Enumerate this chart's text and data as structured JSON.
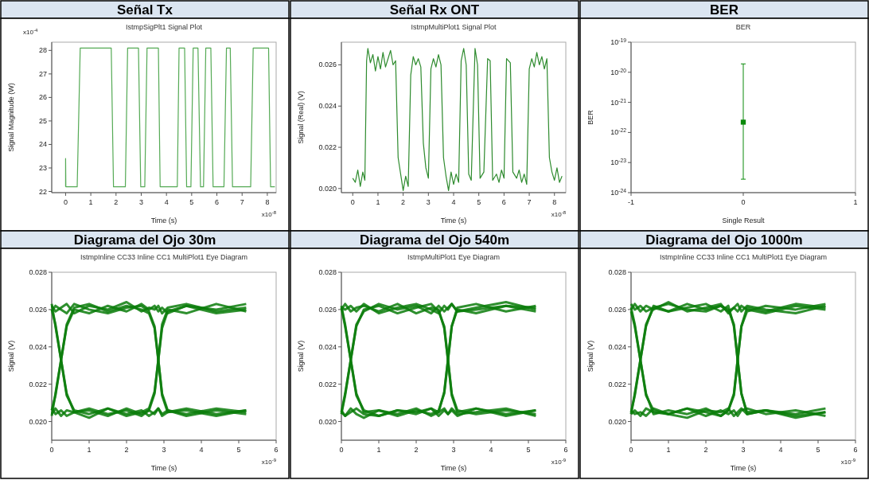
{
  "chart_data": [
    {
      "type": "line",
      "title": "Señal Tx",
      "subtitle": "IstmpSigPlt1 Signal Plot",
      "xlabel": "Time (s)",
      "ylabel": "Signal Magnitude (W)",
      "annotations": [
        "x10$^{-4}$",
        "x10$^{-8}$"
      ],
      "xlim": [
        -0.55,
        8.35
      ],
      "xticks": [
        0,
        1,
        2,
        3,
        4,
        5,
        6,
        7,
        8
      ],
      "ylim": [
        21.95,
        28.35
      ],
      "yticks": [
        22,
        23,
        24,
        25,
        26,
        27,
        28
      ],
      "series": [
        {
          "color": "#55aa55",
          "x": [
            0,
            0,
            0.01,
            0.46,
            0.58,
            1.81,
            1.9,
            2.37,
            2.46,
            2.89,
            2.98,
            3.14,
            3.23,
            3.68,
            3.75,
            4.43,
            4.5,
            4.72,
            4.8,
            4.97,
            5.06,
            5.25,
            5.35,
            5.47,
            5.56,
            5.76,
            5.85,
            6.28,
            6.38,
            6.53,
            6.62,
            7.34,
            7.44,
            8.05,
            8.13,
            8.3
          ],
          "values": [
            22.2,
            23.4,
            22.2,
            22.2,
            28.1,
            28.1,
            22.2,
            22.2,
            28.1,
            28.1,
            22.2,
            22.2,
            28.1,
            28.1,
            22.2,
            22.2,
            28.1,
            28.1,
            22.2,
            22.2,
            28.1,
            28.1,
            22.2,
            22.2,
            28.1,
            28.1,
            22.2,
            22.2,
            28.1,
            28.1,
            22.2,
            22.2,
            28.1,
            28.1,
            22.2,
            22.2
          ]
        }
      ]
    },
    {
      "type": "line",
      "title": "Señal Rx ONT",
      "subtitle": "IstmpMultiPlot1 Signal Plot",
      "xlabel": "Time (s)",
      "ylabel": "Signal (Real) (V)",
      "annotations": [
        "x10$^{-8}$"
      ],
      "xlim": [
        -0.45,
        8.45
      ],
      "xticks": [
        0,
        1,
        2,
        3,
        4,
        5,
        6,
        7,
        8
      ],
      "ylim": [
        0.0198,
        0.0271
      ],
      "yticks": [
        {
          "value": 0.02,
          "label": "0.020"
        },
        0.022,
        0.024,
        0.026
      ],
      "series": [
        {
          "color": "#2e8b2e",
          "x": [
            0,
            0.1,
            0.2,
            0.3,
            0.4,
            0.48,
            0.55,
            0.6,
            0.7,
            0.8,
            0.9,
            1.0,
            1.1,
            1.2,
            1.3,
            1.4,
            1.5,
            1.6,
            1.7,
            1.8,
            1.9,
            2.0,
            2.1,
            2.2,
            2.3,
            2.4,
            2.5,
            2.6,
            2.7,
            2.8,
            2.9,
            3.0,
            3.1,
            3.2,
            3.3,
            3.4,
            3.5,
            3.6,
            3.7,
            3.8,
            3.9,
            4.0,
            4.1,
            4.2,
            4.3,
            4.4,
            4.5,
            4.6,
            4.7,
            4.85,
            4.95,
            5.05,
            5.2,
            5.35,
            5.45,
            5.55,
            5.7,
            5.8,
            5.9,
            6.0,
            6.1,
            6.25,
            6.35,
            6.5,
            6.6,
            6.7,
            6.8,
            6.9,
            7.0,
            7.1,
            7.2,
            7.3,
            7.4,
            7.5,
            7.6,
            7.7,
            7.8,
            7.9,
            8.0,
            8.1,
            8.2,
            8.3
          ],
          "values": [
            0.0205,
            0.0203,
            0.0209,
            0.0201,
            0.0208,
            0.0204,
            0.0262,
            0.0268,
            0.0261,
            0.0265,
            0.0257,
            0.0264,
            0.0258,
            0.0266,
            0.0259,
            0.0263,
            0.0267,
            0.026,
            0.0262,
            0.0215,
            0.0207,
            0.0199,
            0.0206,
            0.0201,
            0.0255,
            0.0264,
            0.026,
            0.0263,
            0.0259,
            0.0222,
            0.021,
            0.0205,
            0.0258,
            0.0263,
            0.0259,
            0.0265,
            0.026,
            0.0215,
            0.0206,
            0.0199,
            0.0208,
            0.0202,
            0.0207,
            0.0203,
            0.0262,
            0.0268,
            0.026,
            0.0207,
            0.0204,
            0.0268,
            0.026,
            0.0205,
            0.0208,
            0.0263,
            0.0262,
            0.0204,
            0.0207,
            0.0203,
            0.0209,
            0.0205,
            0.0263,
            0.0261,
            0.0208,
            0.0205,
            0.0209,
            0.0203,
            0.0207,
            0.0202,
            0.0258,
            0.0263,
            0.0259,
            0.0266,
            0.026,
            0.0264,
            0.0258,
            0.0263,
            0.0215,
            0.0208,
            0.0204,
            0.021,
            0.0203,
            0.0206
          ]
        }
      ]
    },
    {
      "type": "scatter",
      "title": "BER",
      "subtitle": "BER",
      "xlabel": "Single Result",
      "ylabel": "BER",
      "log": true,
      "marker": "square",
      "xlim": [
        -1,
        1
      ],
      "xticks": [
        -1,
        0,
        1
      ],
      "ylim": [
        1e-24,
        1e-19
      ],
      "yticks": [
        {
          "value": 1e-24,
          "label": "10$^{-24}$"
        },
        {
          "value": 1e-23,
          "label": "10$^{-23}$"
        },
        {
          "value": 1e-22,
          "label": "10$^{-22}$"
        },
        {
          "value": 1e-21,
          "label": "10$^{-21}$"
        },
        {
          "value": 1e-20,
          "label": "10$^{-20}$"
        },
        {
          "value": 1e-19,
          "label": "10$^{-19}$"
        }
      ],
      "series": [
        {
          "color": "#0a8a0a",
          "x": [
            0
          ],
          "values": [
            2.2e-22
          ],
          "errors": [
            [
              2.8e-24,
              1.9e-20
            ]
          ]
        }
      ]
    },
    {
      "type": "line",
      "title": "Diagrama del Ojo 30m",
      "subtitle": "IstmpInline CC33 Inline CC1 MultiPlot1 Eye Diagram",
      "xlabel": "Time (s)",
      "ylabel": "Signal (V)",
      "annotations": [
        "x10$^{-9}$"
      ],
      "xlim": [
        0,
        6
      ],
      "xticks": [
        0,
        1,
        2,
        3,
        4,
        5,
        6
      ],
      "ylim": [
        0.019,
        0.028
      ],
      "yticks": [
        {
          "value": 0.02,
          "label": "0.020"
        },
        0.022,
        0.024,
        0.026,
        0.028
      ],
      "series": [
        {
          "color": "#0b7d0b",
          "x": [
            0,
            0.1,
            0.25,
            0.4,
            0.6,
            1.0,
            1.5,
            2.0,
            2.4,
            2.6,
            2.75,
            2.85,
            2.95,
            3.1,
            3.6,
            4.4,
            5.2
          ],
          "values": [
            0.0262,
            0.0259,
            0.0261,
            0.0263,
            0.0258,
            0.0262,
            0.026,
            0.0264,
            0.0259,
            0.0261,
            0.026,
            0.0262,
            0.0258,
            0.0261,
            0.0263,
            0.0259,
            0.0261
          ]
        },
        {
          "color": "#0b7d0b",
          "x": [
            0,
            0.1,
            0.25,
            0.4,
            0.6,
            1.0,
            1.5,
            2.0,
            2.4,
            2.6,
            2.75,
            2.85,
            2.95,
            3.1,
            3.6,
            4.4,
            5.2
          ],
          "values": [
            0.0204,
            0.0207,
            0.0203,
            0.0206,
            0.0205,
            0.0202,
            0.0207,
            0.0204,
            0.0206,
            0.0203,
            0.0205,
            0.0207,
            0.0204,
            0.0206,
            0.0203,
            0.0206,
            0.0204
          ]
        },
        {
          "color": "#0b7d0b",
          "x": [
            0,
            0.1,
            0.25,
            0.4,
            0.6,
            1.0,
            1.5,
            2.0,
            2.4,
            2.6,
            2.75,
            2.85,
            2.95,
            3.1,
            3.6,
            4.4,
            5.2
          ],
          "values": [
            0.026,
            0.0252,
            0.0233,
            0.0214,
            0.0206,
            0.0204,
            0.0207,
            0.0203,
            0.0205,
            0.0207,
            0.0216,
            0.0233,
            0.025,
            0.0259,
            0.0262,
            0.0258,
            0.026
          ]
        },
        {
          "color": "#0b7d0b",
          "x": [
            0,
            0.1,
            0.25,
            0.4,
            0.6,
            1.0,
            1.5,
            2.0,
            2.4,
            2.6,
            2.75,
            2.85,
            2.95,
            3.1,
            3.6,
            4.4,
            5.2
          ],
          "values": [
            0.0206,
            0.0214,
            0.0233,
            0.0252,
            0.0261,
            0.0263,
            0.0259,
            0.0262,
            0.026,
            0.0258,
            0.025,
            0.0233,
            0.0215,
            0.0206,
            0.0204,
            0.0207,
            0.0205
          ]
        },
        {
          "color": "#0b7d0b",
          "x": [
            0,
            0.1,
            0.25,
            0.4,
            0.6,
            1.0,
            1.5,
            2.0,
            2.4,
            2.6,
            2.75,
            2.85,
            2.95,
            3.1,
            3.6,
            4.4,
            5.2
          ],
          "values": [
            0.0263,
            0.0251,
            0.0233,
            0.0215,
            0.0205,
            0.0207,
            0.0204,
            0.0206,
            0.0203,
            0.0206,
            0.0204,
            0.0207,
            0.0203,
            0.0205,
            0.0206,
            0.0203,
            0.0206
          ]
        },
        {
          "color": "#0b7d0b",
          "x": [
            0,
            0.1,
            0.25,
            0.4,
            0.6,
            1.0,
            1.5,
            2.0,
            2.4,
            2.6,
            2.75,
            2.85,
            2.95,
            3.1,
            3.6,
            4.4,
            5.2
          ],
          "values": [
            0.0203,
            0.0215,
            0.0233,
            0.0251,
            0.026,
            0.0258,
            0.0262,
            0.0259,
            0.0263,
            0.026,
            0.0262,
            0.0259,
            0.0261,
            0.0258,
            0.0262,
            0.026,
            0.0263
          ]
        },
        {
          "color": "#0b7d0b",
          "x": [
            0,
            0.1,
            0.25,
            0.4,
            0.6,
            1.0,
            1.5,
            2.0,
            2.4,
            2.6,
            2.75,
            2.85,
            2.95,
            3.1,
            3.6,
            4.4,
            5.2
          ],
          "values": [
            0.0259,
            0.0262,
            0.026,
            0.0258,
            0.0263,
            0.026,
            0.0258,
            0.0261,
            0.0262,
            0.0259,
            0.0251,
            0.0233,
            0.0214,
            0.0205,
            0.0207,
            0.0204,
            0.0206
          ]
        },
        {
          "color": "#0b7d0b",
          "x": [
            0,
            0.1,
            0.25,
            0.4,
            0.6,
            1.0,
            1.5,
            2.0,
            2.4,
            2.6,
            2.75,
            2.85,
            2.95,
            3.1,
            3.6,
            4.4,
            5.2
          ],
          "values": [
            0.0207,
            0.0204,
            0.0206,
            0.0203,
            0.0205,
            0.0206,
            0.0203,
            0.0207,
            0.0204,
            0.0206,
            0.0215,
            0.0233,
            0.0252,
            0.026,
            0.0258,
            0.0263,
            0.0259
          ]
        }
      ]
    },
    {
      "type": "line",
      "title": "Diagrama del Ojo 540m",
      "subtitle": "IstmpMultiPlot1 Eye Diagram",
      "xlabel": "Time (s)",
      "ylabel": "Signal (V)",
      "annotations": [
        "x10$^{-9}$"
      ],
      "xlim": [
        0,
        6
      ],
      "xticks": [
        0,
        1,
        2,
        3,
        4,
        5,
        6
      ],
      "ylim": [
        0.019,
        0.028
      ],
      "yticks": [
        {
          "value": 0.02,
          "label": "0.020"
        },
        0.022,
        0.024,
        0.026,
        0.028
      ],
      "series": [
        {
          "color": "#0b7d0b",
          "x": [
            0,
            0.1,
            0.25,
            0.4,
            0.6,
            1.0,
            1.5,
            2.0,
            2.4,
            2.6,
            2.75,
            2.85,
            2.95,
            3.1,
            3.6,
            4.4,
            5.2
          ],
          "values": [
            0.0261,
            0.026,
            0.0262,
            0.0259,
            0.0263,
            0.0258,
            0.0261,
            0.0263,
            0.026,
            0.0258,
            0.0262,
            0.026,
            0.0263,
            0.0259,
            0.0261,
            0.0264,
            0.026
          ]
        },
        {
          "color": "#0b7d0b",
          "x": [
            0,
            0.1,
            0.25,
            0.4,
            0.6,
            1.0,
            1.5,
            2.0,
            2.4,
            2.6,
            2.75,
            2.85,
            2.95,
            3.1,
            3.6,
            4.4,
            5.2
          ],
          "values": [
            0.0205,
            0.0203,
            0.0207,
            0.0204,
            0.0202,
            0.0206,
            0.0204,
            0.0207,
            0.0203,
            0.0205,
            0.0207,
            0.0204,
            0.0206,
            0.0203,
            0.0207,
            0.0204,
            0.0206
          ]
        },
        {
          "color": "#0b7d0b",
          "x": [
            0,
            0.1,
            0.25,
            0.4,
            0.6,
            1.0,
            1.5,
            2.0,
            2.4,
            2.6,
            2.75,
            2.85,
            2.95,
            3.1,
            3.6,
            4.4,
            5.2
          ],
          "values": [
            0.0261,
            0.0251,
            0.0233,
            0.0215,
            0.0205,
            0.0206,
            0.0203,
            0.0206,
            0.0204,
            0.0206,
            0.0215,
            0.0233,
            0.0251,
            0.026,
            0.0258,
            0.0262,
            0.0259
          ]
        },
        {
          "color": "#0b7d0b",
          "x": [
            0,
            0.1,
            0.25,
            0.4,
            0.6,
            1.0,
            1.5,
            2.0,
            2.4,
            2.6,
            2.75,
            2.85,
            2.95,
            3.1,
            3.6,
            4.4,
            5.2
          ],
          "values": [
            0.0205,
            0.0215,
            0.0233,
            0.0251,
            0.026,
            0.0262,
            0.0258,
            0.0261,
            0.0263,
            0.0259,
            0.0251,
            0.0233,
            0.0214,
            0.0205,
            0.0207,
            0.0203,
            0.0206
          ]
        },
        {
          "color": "#0b7d0b",
          "x": [
            0,
            0.1,
            0.25,
            0.4,
            0.6,
            1.0,
            1.5,
            2.0,
            2.4,
            2.6,
            2.75,
            2.85,
            2.95,
            3.1,
            3.6,
            4.4,
            5.2
          ],
          "values": [
            0.0262,
            0.0252,
            0.0233,
            0.0214,
            0.0206,
            0.0203,
            0.0206,
            0.0205,
            0.0207,
            0.0203,
            0.0206,
            0.0204,
            0.0207,
            0.0204,
            0.0205,
            0.0207,
            0.0203
          ]
        },
        {
          "color": "#0b7d0b",
          "x": [
            0,
            0.1,
            0.25,
            0.4,
            0.6,
            1.0,
            1.5,
            2.0,
            2.4,
            2.6,
            2.75,
            2.85,
            2.95,
            3.1,
            3.6,
            4.4,
            5.2
          ],
          "values": [
            0.0204,
            0.0214,
            0.0233,
            0.0252,
            0.0259,
            0.0263,
            0.026,
            0.0262,
            0.0258,
            0.0262,
            0.0259,
            0.0261,
            0.0263,
            0.0259,
            0.026,
            0.0262,
            0.0261
          ]
        },
        {
          "color": "#0b7d0b",
          "x": [
            0,
            0.1,
            0.25,
            0.4,
            0.6,
            1.0,
            1.5,
            2.0,
            2.4,
            2.6,
            2.75,
            2.85,
            2.95,
            3.1,
            3.6,
            4.4,
            5.2
          ],
          "values": [
            0.026,
            0.0263,
            0.0259,
            0.0261,
            0.0262,
            0.0259,
            0.0263,
            0.0258,
            0.0261,
            0.026,
            0.025,
            0.0233,
            0.0215,
            0.0206,
            0.0204,
            0.0206,
            0.0204
          ]
        },
        {
          "color": "#0b7d0b",
          "x": [
            0,
            0.1,
            0.25,
            0.4,
            0.6,
            1.0,
            1.5,
            2.0,
            2.4,
            2.6,
            2.75,
            2.85,
            2.95,
            3.1,
            3.6,
            4.4,
            5.2
          ],
          "values": [
            0.0206,
            0.0203,
            0.0205,
            0.0207,
            0.0204,
            0.0203,
            0.0206,
            0.0204,
            0.0207,
            0.0205,
            0.0216,
            0.0233,
            0.0251,
            0.0261,
            0.0263,
            0.0259,
            0.0262
          ]
        }
      ]
    },
    {
      "type": "line",
      "title": "Diagrama del Ojo 1000m",
      "subtitle": "IstmpInline CC33 Inline CC1 MultiPlot1 Eye Diagram",
      "xlabel": "Time (s)",
      "ylabel": "Signal (V)",
      "annotations": [
        "x10$^{-9}$"
      ],
      "xlim": [
        0,
        6
      ],
      "xticks": [
        0,
        1,
        2,
        3,
        4,
        5,
        6
      ],
      "ylim": [
        0.019,
        0.028
      ],
      "yticks": [
        {
          "value": 0.02,
          "label": "0.020"
        },
        0.022,
        0.024,
        0.026,
        0.028
      ],
      "series": [
        {
          "color": "#0b7d0b",
          "x": [
            0,
            0.1,
            0.25,
            0.4,
            0.6,
            1.0,
            1.5,
            2.0,
            2.4,
            2.6,
            2.75,
            2.85,
            2.95,
            3.1,
            3.6,
            4.4,
            5.2
          ],
          "values": [
            0.026,
            0.0263,
            0.0259,
            0.0262,
            0.026,
            0.0264,
            0.0259,
            0.0261,
            0.0263,
            0.0258,
            0.0261,
            0.0259,
            0.0262,
            0.026,
            0.0258,
            0.0262,
            0.026
          ]
        },
        {
          "color": "#0b7d0b",
          "x": [
            0,
            0.1,
            0.25,
            0.4,
            0.6,
            1.0,
            1.5,
            2.0,
            2.4,
            2.6,
            2.75,
            2.85,
            2.95,
            3.1,
            3.6,
            4.4,
            5.2
          ],
          "values": [
            0.0206,
            0.0204,
            0.0205,
            0.0203,
            0.0207,
            0.0204,
            0.0202,
            0.0206,
            0.0205,
            0.0207,
            0.0203,
            0.0205,
            0.0207,
            0.0204,
            0.0206,
            0.0202,
            0.0205
          ]
        },
        {
          "color": "#0b7d0b",
          "x": [
            0,
            0.1,
            0.25,
            0.4,
            0.6,
            1.0,
            1.5,
            2.0,
            2.4,
            2.6,
            2.75,
            2.85,
            2.95,
            3.1,
            3.6,
            4.4,
            5.2
          ],
          "values": [
            0.0259,
            0.0251,
            0.0233,
            0.0215,
            0.0204,
            0.0206,
            0.0204,
            0.0207,
            0.0203,
            0.0206,
            0.0215,
            0.0233,
            0.0251,
            0.0261,
            0.0259,
            0.0263,
            0.0261
          ]
        },
        {
          "color": "#0b7d0b",
          "x": [
            0,
            0.1,
            0.25,
            0.4,
            0.6,
            1.0,
            1.5,
            2.0,
            2.4,
            2.6,
            2.75,
            2.85,
            2.95,
            3.1,
            3.6,
            4.4,
            5.2
          ],
          "values": [
            0.0204,
            0.0215,
            0.0233,
            0.0251,
            0.0262,
            0.0259,
            0.0261,
            0.0263,
            0.0259,
            0.0262,
            0.0251,
            0.0233,
            0.0215,
            0.0205,
            0.0206,
            0.0204,
            0.0207
          ]
        },
        {
          "color": "#0b7d0b",
          "x": [
            0,
            0.1,
            0.25,
            0.4,
            0.6,
            1.0,
            1.5,
            2.0,
            2.4,
            2.6,
            2.75,
            2.85,
            2.95,
            3.1,
            3.6,
            4.4,
            5.2
          ],
          "values": [
            0.0261,
            0.0252,
            0.0233,
            0.0214,
            0.0206,
            0.0204,
            0.0207,
            0.0203,
            0.0206,
            0.0204,
            0.0206,
            0.0203,
            0.0206,
            0.0207,
            0.0204,
            0.0206,
            0.0203
          ]
        },
        {
          "color": "#0b7d0b",
          "x": [
            0,
            0.1,
            0.25,
            0.4,
            0.6,
            1.0,
            1.5,
            2.0,
            2.4,
            2.6,
            2.75,
            2.85,
            2.95,
            3.1,
            3.6,
            4.4,
            5.2
          ],
          "values": [
            0.0205,
            0.0214,
            0.0233,
            0.0252,
            0.0261,
            0.0259,
            0.0263,
            0.026,
            0.0262,
            0.0259,
            0.0261,
            0.0263,
            0.0259,
            0.0262,
            0.026,
            0.0258,
            0.0262
          ]
        },
        {
          "color": "#0b7d0b",
          "x": [
            0,
            0.1,
            0.25,
            0.4,
            0.6,
            1.0,
            1.5,
            2.0,
            2.4,
            2.6,
            2.75,
            2.85,
            2.95,
            3.1,
            3.6,
            4.4,
            5.2
          ],
          "values": [
            0.0263,
            0.026,
            0.0262,
            0.0259,
            0.0261,
            0.0263,
            0.026,
            0.0259,
            0.0262,
            0.026,
            0.0252,
            0.0233,
            0.0215,
            0.0204,
            0.0206,
            0.0203,
            0.0205
          ]
        },
        {
          "color": "#0b7d0b",
          "x": [
            0,
            0.1,
            0.25,
            0.4,
            0.6,
            1.0,
            1.5,
            2.0,
            2.4,
            2.6,
            2.75,
            2.85,
            2.95,
            3.1,
            3.6,
            4.4,
            5.2
          ],
          "values": [
            0.0204,
            0.0206,
            0.0203,
            0.0207,
            0.0205,
            0.0204,
            0.0207,
            0.0205,
            0.0203,
            0.0206,
            0.0214,
            0.0233,
            0.0251,
            0.0259,
            0.0262,
            0.026,
            0.0263
          ]
        }
      ]
    }
  ]
}
